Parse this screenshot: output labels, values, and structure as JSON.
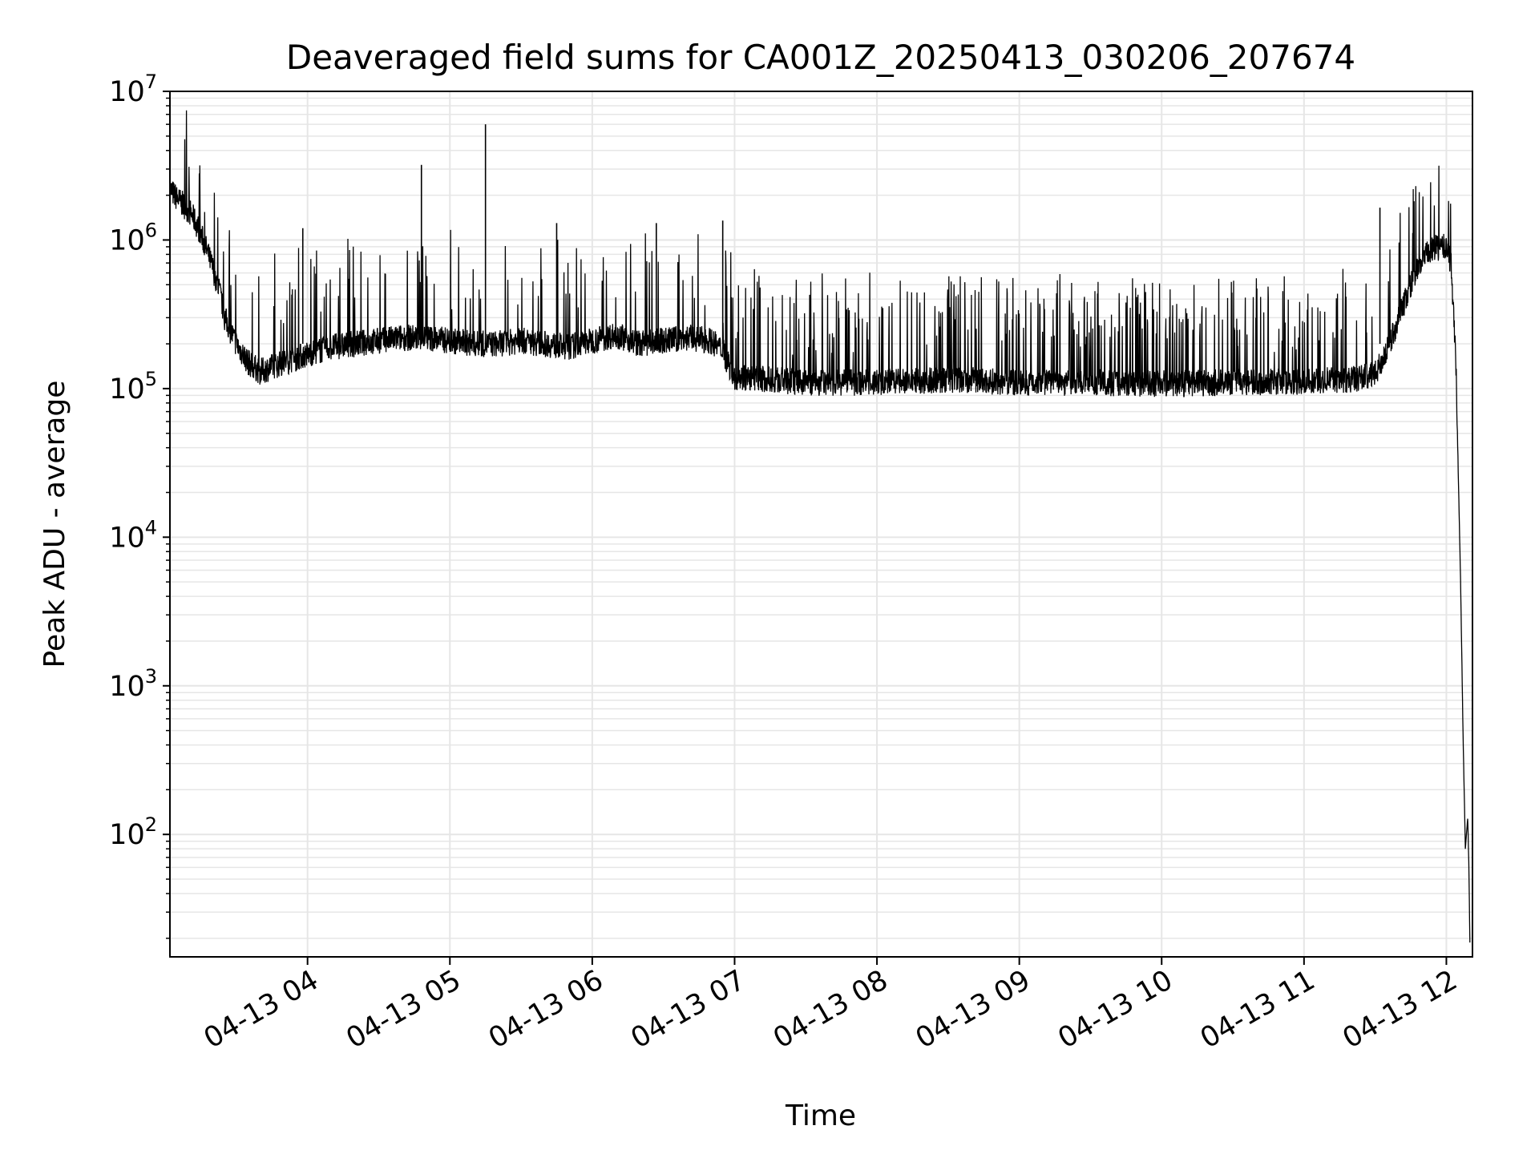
{
  "chart_data": {
    "type": "line",
    "title": "Deaveraged field sums for CA001Z_20250413_030206_207674",
    "xlabel": "Time",
    "ylabel": "Peak ADU - average",
    "yscale": "log",
    "xlim": [
      "2025-04-13 03:02",
      "2025-04-13 12:11"
    ],
    "ylim": [
      15,
      10000000
    ],
    "grid": true,
    "grid_minor": true,
    "line_color": "#000000",
    "grid_color": "#e6e6e6",
    "xticks": [
      {
        "value": "2025-04-13 04:00",
        "label": "04-13 04"
      },
      {
        "value": "2025-04-13 05:00",
        "label": "04-13 05"
      },
      {
        "value": "2025-04-13 06:00",
        "label": "04-13 06"
      },
      {
        "value": "2025-04-13 07:00",
        "label": "04-13 07"
      },
      {
        "value": "2025-04-13 08:00",
        "label": "04-13 08"
      },
      {
        "value": "2025-04-13 09:00",
        "label": "04-13 09"
      },
      {
        "value": "2025-04-13 10:00",
        "label": "04-13 10"
      },
      {
        "value": "2025-04-13 11:00",
        "label": "04-13 11"
      },
      {
        "value": "2025-04-13 12:00",
        "label": "04-13 12"
      }
    ],
    "yticks": [
      {
        "value": 100,
        "base": "10",
        "exp": "2"
      },
      {
        "value": 1000,
        "base": "10",
        "exp": "3"
      },
      {
        "value": 10000,
        "base": "10",
        "exp": "4"
      },
      {
        "value": 100000,
        "base": "10",
        "exp": "5"
      },
      {
        "value": 1000000,
        "base": "10",
        "exp": "6"
      },
      {
        "value": 10000000,
        "base": "10",
        "exp": "7"
      }
    ],
    "series": [
      {
        "x": [
          "2025-04-13 03:02",
          "2025-04-13 03:05",
          "2025-04-13 03:08",
          "2025-04-13 03:11",
          "2025-04-13 03:14",
          "2025-04-13 03:17",
          "2025-04-13 03:20",
          "2025-04-13 03:23",
          "2025-04-13 03:25",
          "2025-04-13 03:30",
          "2025-04-13 03:35",
          "2025-04-13 03:40",
          "2025-04-13 03:45",
          "2025-04-13 03:50",
          "2025-04-13 03:55",
          "2025-04-13 04:00",
          "2025-04-13 04:10",
          "2025-04-13 04:20",
          "2025-04-13 04:30",
          "2025-04-13 04:40",
          "2025-04-13 04:50",
          "2025-04-13 05:00",
          "2025-04-13 05:10",
          "2025-04-13 05:20",
          "2025-04-13 05:30",
          "2025-04-13 05:40",
          "2025-04-13 05:50",
          "2025-04-13 06:00",
          "2025-04-13 06:10",
          "2025-04-13 06:20",
          "2025-04-13 06:30",
          "2025-04-13 06:40",
          "2025-04-13 06:50",
          "2025-04-13 06:55",
          "2025-04-13 07:00",
          "2025-04-13 07:30",
          "2025-04-13 08:00",
          "2025-04-13 08:30",
          "2025-04-13 09:00",
          "2025-04-13 09:30",
          "2025-04-13 10:00",
          "2025-04-13 10:30",
          "2025-04-13 11:00",
          "2025-04-13 11:20",
          "2025-04-13 11:30",
          "2025-04-13 11:35",
          "2025-04-13 11:40",
          "2025-04-13 11:45",
          "2025-04-13 11:50",
          "2025-04-13 11:55",
          "2025-04-13 12:00",
          "2025-04-13 12:02",
          "2025-04-13 12:04",
          "2025-04-13 12:06",
          "2025-04-13 12:07",
          "2025-04-13 12:08",
          "2025-04-13 12:09",
          "2025-04-13 12:09.5",
          "2025-04-13 12:10"
        ],
        "y": [
          2200000,
          1900000,
          1700000,
          1500000,
          1200000,
          900000,
          650000,
          450000,
          300000,
          200000,
          150000,
          130000,
          140000,
          150000,
          160000,
          170000,
          190000,
          200000,
          210000,
          220000,
          220000,
          210000,
          200000,
          200000,
          210000,
          200000,
          190000,
          210000,
          230000,
          200000,
          210000,
          220000,
          210000,
          180000,
          120000,
          110000,
          110000,
          115000,
          110000,
          110000,
          108000,
          110000,
          112000,
          115000,
          125000,
          180000,
          300000,
          500000,
          750000,
          880000,
          900000,
          700000,
          150000,
          5000,
          500,
          80,
          130,
          60,
          15
        ]
      }
    ],
    "spikes": [
      {
        "x": "2025-04-13 04:48",
        "y": 3200000
      },
      {
        "x": "2025-04-13 05:15",
        "y": 6000000
      },
      {
        "x": "2025-04-13 03:58",
        "y": 1200000
      },
      {
        "x": "2025-04-13 05:45",
        "y": 1300000
      },
      {
        "x": "2025-04-13 06:27",
        "y": 1300000
      },
      {
        "x": "2025-04-13 06:55",
        "y": 1350000
      },
      {
        "x": "2025-04-13 11:32",
        "y": 1650000
      }
    ]
  }
}
